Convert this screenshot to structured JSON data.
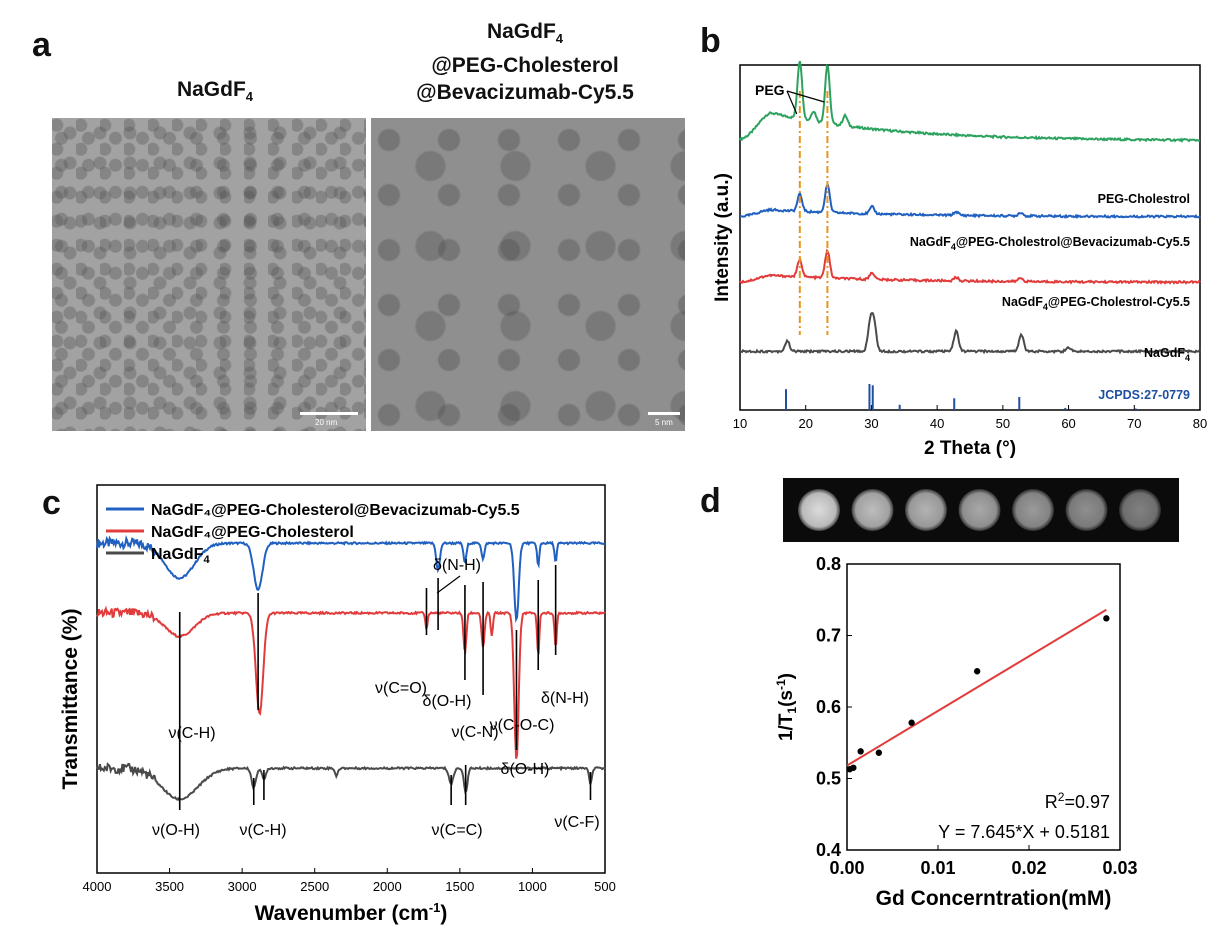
{
  "panels": {
    "a": {
      "letter": "a",
      "left_title": {
        "main": "NaGdF",
        "sub": "4"
      },
      "right_title": {
        "line1_main": "NaGdF",
        "line1_sub": "4",
        "line2": "@PEG-Cholesterol",
        "line3": "@Bevacizumab-Cy5.5"
      },
      "left_scale": "20 nm",
      "right_scale": "5 nm"
    },
    "b": {
      "letter": "b"
    },
    "c": {
      "letter": "c"
    },
    "d": {
      "letter": "d"
    }
  },
  "chart_data": [
    {
      "id": "b",
      "type": "line",
      "title": "",
      "xlabel": "2 Theta (°)",
      "ylabel": "Intensity (a.u.)",
      "xlim": [
        10,
        80
      ],
      "xticks": [
        10,
        20,
        30,
        40,
        50,
        60,
        70,
        80
      ],
      "series": [
        {
          "name": "PEG-Cholestrol",
          "color": "#2ca25f",
          "baseline": 0.78,
          "peaks": [
            [
              19.1,
              0.17
            ],
            [
              23.3,
              0.17
            ],
            [
              21.2,
              0.03
            ],
            [
              26,
              0.03
            ]
          ],
          "decay": 0.08
        },
        {
          "name": "NaGdF4@PEG-Cholestrol@Bevacizumab-Cy5.5",
          "color": "#2060c0",
          "baseline": 0.56,
          "peaks": [
            [
              19.1,
              0.05
            ],
            [
              23.3,
              0.08
            ],
            [
              30.1,
              0.02
            ],
            [
              42.9,
              0.01
            ],
            [
              52.7,
              0.01
            ]
          ],
          "decay": 0.02
        },
        {
          "name": "NaGdF4@PEG-Cholestrol-Cy5.5",
          "color": "#e03c3c",
          "baseline": 0.37,
          "peaks": [
            [
              19.1,
              0.05
            ],
            [
              23.3,
              0.08
            ],
            [
              30.1,
              0.02
            ],
            [
              42.9,
              0.01
            ],
            [
              52.7,
              0.01
            ]
          ],
          "decay": 0.02
        },
        {
          "name": "NaGdF4",
          "color": "#4a4a4a",
          "baseline": 0.17,
          "peaks": [
            [
              17.2,
              0.03
            ],
            [
              29.8,
              0.08
            ],
            [
              30.4,
              0.08
            ],
            [
              42.9,
              0.06
            ],
            [
              52.8,
              0.05
            ],
            [
              60,
              0.01
            ]
          ],
          "decay": 0.0
        }
      ],
      "reference": {
        "name": "JCPDS:27-0779",
        "color": "#1f4fa0",
        "lines": [
          [
            17.0,
            0.8
          ],
          [
            29.7,
            1.0
          ],
          [
            30.2,
            0.95
          ],
          [
            34.3,
            0.2
          ],
          [
            42.6,
            0.45
          ],
          [
            52.5,
            0.5
          ],
          [
            59.5,
            0.08
          ],
          [
            70.2,
            0.06
          ]
        ]
      },
      "annotations": {
        "peg_label": "PEG",
        "guide_lines_x": [
          19.1,
          23.3
        ]
      }
    },
    {
      "id": "c",
      "type": "line",
      "title": "",
      "xlabel": "Wavenumber (cm",
      "xlabel_sup": "-1",
      "xlabel_end": ")",
      "ylabel": "Transmittance (%)",
      "xlim": [
        4000,
        500
      ],
      "xticks": [
        4000,
        3500,
        3000,
        2500,
        2000,
        1500,
        1000,
        500
      ],
      "legend": [
        {
          "name": "NaGdF₄@PEG-Cholesterol@Bevacizumab-Cy5.5",
          "color": "#2060c0"
        },
        {
          "name": "NaGdF₄@PEG-Cholesterol",
          "color": "#e03c3c"
        },
        {
          "name": "NaGdF4",
          "color": "#4a4a4a"
        }
      ],
      "series": [
        {
          "name": "NaGdF4@PEG-Cholesterol@Bevacizumab-Cy5.5",
          "color": "#2060c0",
          "baseline": 0.85,
          "dips": [
            [
              3430,
              0.09,
              200
            ],
            [
              2890,
              0.12,
              60
            ],
            [
              1650,
              0.07,
              25
            ],
            [
              1465,
              0.05,
              20
            ],
            [
              1340,
              0.04,
              20
            ],
            [
              1110,
              0.2,
              30
            ],
            [
              960,
              0.06,
              15
            ],
            [
              840,
              0.05,
              15
            ]
          ]
        },
        {
          "name": "NaGdF4@PEG-Cholesterol",
          "color": "#e03c3c",
          "baseline": 0.67,
          "dips": [
            [
              3430,
              0.06,
              200
            ],
            [
              2880,
              0.26,
              50
            ],
            [
              1730,
              0.04,
              15
            ],
            [
              1465,
              0.1,
              20
            ],
            [
              1340,
              0.09,
              20
            ],
            [
              1280,
              0.06,
              15
            ],
            [
              1110,
              0.38,
              30
            ],
            [
              960,
              0.11,
              15
            ],
            [
              840,
              0.09,
              15
            ]
          ]
        },
        {
          "name": "NaGdF4",
          "color": "#4a4a4a",
          "baseline": 0.27,
          "dips": [
            [
              3430,
              0.08,
              250
            ],
            [
              2920,
              0.05,
              30
            ],
            [
              2850,
              0.03,
              25
            ],
            [
              2350,
              0.02,
              20
            ],
            [
              1560,
              0.04,
              30
            ],
            [
              1460,
              0.06,
              25
            ],
            [
              600,
              0.04,
              20
            ]
          ]
        }
      ],
      "annotations": [
        "δ(N-H)",
        "ν(C=O)",
        "δ(O-H)",
        "ν(C-N)",
        "ν(C-O-C)",
        "δ(O-H)",
        "δ(N-H)",
        "ν(C-H)",
        "ν(O-H)",
        "ν(C-H)",
        "ν(C=C)",
        "ν(C-F)"
      ]
    },
    {
      "id": "d",
      "type": "scatter",
      "title": "",
      "xlabel": "Gd Concerntration(mM)",
      "ylabel_main": "1/T",
      "ylabel_sub": "1",
      "ylabel_unit_main": "(s",
      "ylabel_unit_sup": "-1",
      "ylabel_unit_end": ")",
      "xlim": [
        0,
        0.03
      ],
      "ylim": [
        0.4,
        0.8
      ],
      "xticks": [
        0.0,
        0.01,
        0.02,
        0.03
      ],
      "xtick_labels": [
        "0.00",
        "0.01",
        "0.02",
        "0.03"
      ],
      "yticks": [
        0.4,
        0.5,
        0.6,
        0.7,
        0.8
      ],
      "ytick_labels": [
        "0.4",
        "0.5",
        "0.6",
        "0.7",
        "0.8"
      ],
      "points": [
        [
          0.0003,
          0.513
        ],
        [
          0.0007,
          0.515
        ],
        [
          0.0015,
          0.538
        ],
        [
          0.0035,
          0.536
        ],
        [
          0.0071,
          0.578
        ],
        [
          0.0143,
          0.65
        ],
        [
          0.0285,
          0.724
        ]
      ],
      "fit": {
        "slope": 7.645,
        "intercept": 0.5181,
        "x_range": [
          0,
          0.0285
        ],
        "color": "#e03c3c"
      },
      "r2_label": "R",
      "r2_sup": "2",
      "r2_value": "=0.97",
      "equation": "Y = 7.645*X + 0.5181",
      "phantom_brightness": [
        0.95,
        0.82,
        0.78,
        0.73,
        0.67,
        0.62,
        0.56
      ]
    }
  ]
}
